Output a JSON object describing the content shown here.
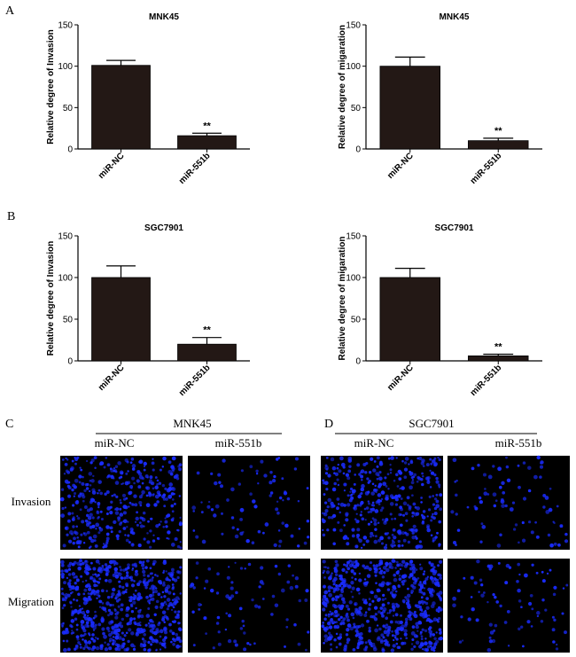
{
  "panels": {
    "A": "A",
    "B": "B",
    "C": "C",
    "D": "D"
  },
  "chart_data": [
    {
      "type": "bar",
      "title": "MNK45",
      "ylabel": "Relative degree of Invasion",
      "xlabel": "",
      "categories": [
        "miR-NC",
        "miR-551b"
      ],
      "values": [
        101,
        16
      ],
      "errors": [
        6,
        3
      ],
      "significance": [
        "",
        "**"
      ],
      "ylim": [
        0,
        150
      ],
      "yticks": [
        0,
        50,
        100,
        150
      ],
      "bar_color": "#231815"
    },
    {
      "type": "bar",
      "title": "MNK45",
      "ylabel": "Relative degree of migaration",
      "xlabel": "",
      "categories": [
        "miR-NC",
        "miR-551b"
      ],
      "values": [
        100,
        10
      ],
      "errors": [
        11,
        3
      ],
      "significance": [
        "",
        "**"
      ],
      "ylim": [
        0,
        150
      ],
      "yticks": [
        0,
        50,
        100,
        150
      ],
      "bar_color": "#231815"
    },
    {
      "type": "bar",
      "title": "SGC7901",
      "ylabel": "Relative degree of Invasion",
      "xlabel": "",
      "categories": [
        "miR-NC",
        "miR-551b"
      ],
      "values": [
        100,
        20
      ],
      "errors": [
        14,
        8
      ],
      "significance": [
        "",
        "**"
      ],
      "ylim": [
        0,
        150
      ],
      "yticks": [
        0,
        50,
        100,
        150
      ],
      "bar_color": "#231815"
    },
    {
      "type": "bar",
      "title": "SGC7901",
      "ylabel": "Relative degree of migaration",
      "xlabel": "",
      "categories": [
        "miR-NC",
        "miR-551b"
      ],
      "values": [
        100,
        6
      ],
      "errors": [
        11,
        2
      ],
      "significance": [
        "",
        "**"
      ],
      "ylim": [
        0,
        150
      ],
      "yticks": [
        0,
        50,
        100,
        150
      ],
      "bar_color": "#231815"
    }
  ],
  "microscopy": {
    "left_group_title": "MNK45",
    "right_group_title": "SGC7901",
    "left_columns": [
      "miR-NC",
      "miR-551b"
    ],
    "right_columns": [
      "miR-NC",
      "miR-551b"
    ],
    "rows": [
      "Invasion",
      "Migration"
    ],
    "image_background": "#000000",
    "stain_color": "#1a2cff",
    "cell_density": {
      "mnk45_invasion_nc": "high",
      "mnk45_invasion_551b": "low",
      "mnk45_migration_nc": "very high",
      "mnk45_migration_551b": "low",
      "sgc7901_invasion_nc": "high",
      "sgc7901_invasion_551b": "low",
      "sgc7901_migration_nc": "very high",
      "sgc7901_migration_551b": "low"
    }
  }
}
